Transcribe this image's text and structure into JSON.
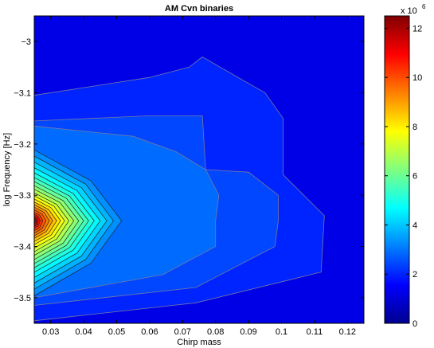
{
  "chart_data": {
    "type": "contour",
    "title": "AM Cvn binaries",
    "xlabel": "Chirp mass",
    "ylabel": "log Frequency [Hz]",
    "xlim": [
      0.025,
      0.125
    ],
    "ylim": [
      -3.55,
      -2.95
    ],
    "x_ticks": [
      "0.03",
      "0.04",
      "0.05",
      "0.06",
      "0.07",
      "0.08",
      "0.09",
      "0.1",
      "0.11",
      "0.12"
    ],
    "y_ticks": [
      "−3",
      "−3.1",
      "−3.2",
      "−3.3",
      "−3.4",
      "−3.5"
    ],
    "x_tick_values": [
      0.03,
      0.04,
      0.05,
      0.06,
      0.07,
      0.08,
      0.09,
      0.1,
      0.11,
      0.12
    ],
    "y_tick_values": [
      -3.0,
      -3.1,
      -3.2,
      -3.3,
      -3.4,
      -3.5
    ],
    "colorbar": {
      "colormap": "jet",
      "range": [
        0,
        12500000
      ],
      "tick_labels": [
        "0",
        "2",
        "4",
        "6",
        "8",
        "10",
        "12"
      ],
      "tick_values": [
        0,
        2,
        4,
        6,
        8,
        10,
        12
      ],
      "exponent_label": "x 10",
      "exponent_power": "6"
    },
    "peak": {
      "x": 0.025,
      "y": -3.35,
      "value": 12500000
    },
    "contour_levels": [
      0,
      500000,
      1000000,
      1500000,
      2000000,
      2500000,
      3000000,
      3500000,
      4000000,
      4500000,
      5000000,
      5500000,
      6000000,
      6500000,
      7000000,
      7500000,
      8000000,
      8500000,
      9000000,
      9500000,
      10000000,
      10500000,
      11000000,
      11500000,
      12000000
    ]
  }
}
